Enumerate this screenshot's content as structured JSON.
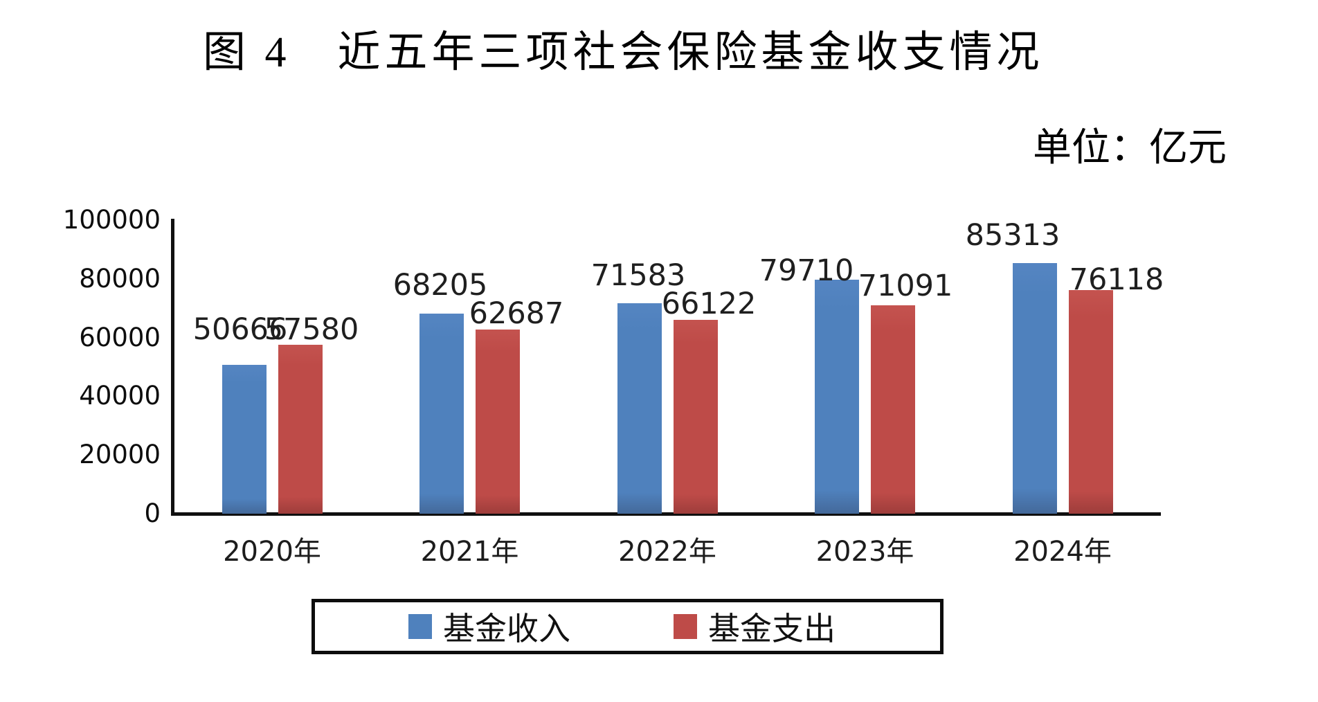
{
  "chart_data": {
    "type": "bar",
    "title": "图 4　近五年三项社会保险基金收支情况",
    "unit_label": "单位：亿元",
    "categories": [
      "2020年",
      "2021年",
      "2022年",
      "2023年",
      "2024年"
    ],
    "series": [
      {
        "name": "基金收入",
        "color": "#4F81BD",
        "values": [
          50666,
          68205,
          71583,
          79710,
          85313
        ]
      },
      {
        "name": "基金支出",
        "color": "#BE4B48",
        "values": [
          57580,
          62687,
          66122,
          71091,
          76118
        ]
      }
    ],
    "xlabel": "",
    "ylabel": "",
    "ylim": [
      0,
      100000
    ],
    "yticks": [
      0,
      20000,
      40000,
      60000,
      80000,
      100000
    ],
    "grid": false,
    "legend_position": "bottom",
    "value_labels_shown": true
  }
}
